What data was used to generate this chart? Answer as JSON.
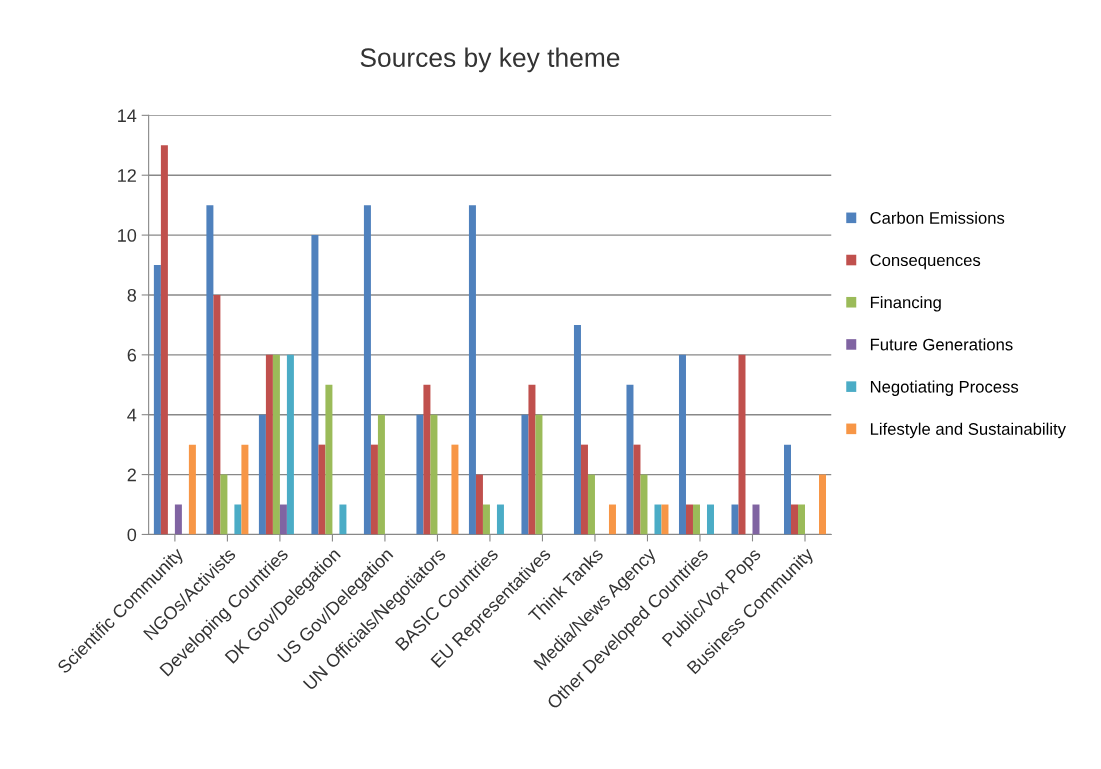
{
  "chart_data": {
    "type": "bar",
    "title": "Sources by key theme",
    "categories": [
      "Scientific Community",
      "NGOs/Activists",
      "Developing Countries",
      "DK Gov/Delegation",
      "US Gov/Delegation",
      "UN Officials/Negotiators",
      "BASIC Countries",
      "EU Representatives",
      "Think Tanks",
      "Media/News Agency",
      "Other Developed Countries",
      "Public/Vox Pops",
      "Business Community"
    ],
    "series": [
      {
        "name": "Carbon Emissions",
        "color": "#4f81bd",
        "values": [
          9,
          11,
          4,
          10,
          11,
          4,
          11,
          4,
          7,
          5,
          6,
          1,
          3
        ]
      },
      {
        "name": "Consequences",
        "color": "#c0504d",
        "values": [
          13,
          8,
          6,
          3,
          3,
          5,
          2,
          5,
          3,
          3,
          1,
          6,
          1
        ]
      },
      {
        "name": "Financing",
        "color": "#9bbb59",
        "values": [
          0,
          2,
          6,
          5,
          4,
          4,
          1,
          4,
          2,
          2,
          1,
          0,
          1
        ]
      },
      {
        "name": "Future Generations",
        "color": "#8064a2",
        "values": [
          1,
          0,
          1,
          0,
          0,
          0,
          0,
          0,
          0,
          0,
          0,
          1,
          0
        ]
      },
      {
        "name": "Negotiating Process",
        "color": "#4bacc6",
        "values": [
          0,
          1,
          6,
          1,
          0,
          0,
          1,
          0,
          0,
          1,
          1,
          0,
          0
        ]
      },
      {
        "name": "Lifestyle and Sustainability",
        "color": "#f79646",
        "values": [
          3,
          3,
          0,
          0,
          0,
          3,
          0,
          0,
          1,
          1,
          0,
          0,
          2
        ]
      }
    ],
    "ylim": [
      0,
      14
    ],
    "yticks": [
      0,
      2,
      4,
      6,
      8,
      10,
      12,
      14
    ],
    "grid": "y",
    "legend": "right"
  }
}
